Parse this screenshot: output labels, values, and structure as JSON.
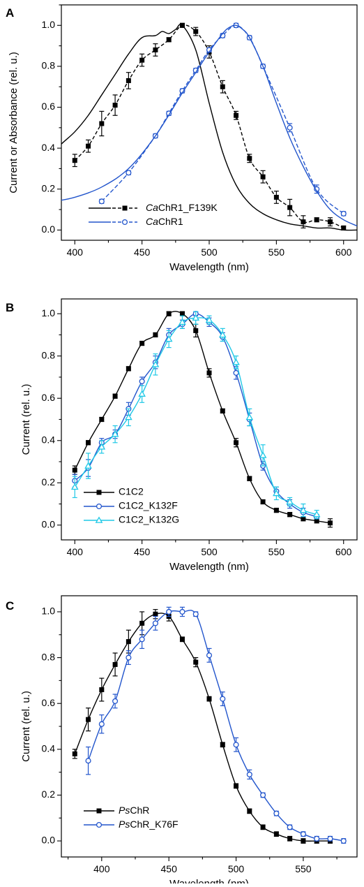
{
  "chart_data": [
    {
      "type": "line",
      "panel_label": "A",
      "xlabel": "Wavelength (nm)",
      "ylabel": "Current or Absorbance (rel. u.)",
      "xlim": [
        390,
        610
      ],
      "ylim": [
        -0.05,
        1.1
      ],
      "xticks": [
        400,
        450,
        500,
        550,
        600
      ],
      "yticks": [
        0.0,
        0.2,
        0.4,
        0.6,
        0.8,
        1.0
      ],
      "legend_position": "bottom-left",
      "series": [
        {
          "name": "CaChR1_F139K",
          "name_italic_prefix": "Ca",
          "name_rest": "ChR1_F139K",
          "color": "#000000",
          "marker": "square-filled",
          "dash": "5,3",
          "x": [
            400,
            410,
            420,
            430,
            440,
            450,
            460,
            470,
            480,
            490,
            500,
            510,
            520,
            530,
            540,
            550,
            560,
            570,
            580,
            590,
            600
          ],
          "y": [
            0.34,
            0.41,
            0.52,
            0.61,
            0.73,
            0.83,
            0.88,
            0.93,
            1.0,
            0.97,
            0.87,
            0.7,
            0.56,
            0.35,
            0.26,
            0.16,
            0.11,
            0.04,
            0.05,
            0.04,
            0.01
          ],
          "err": [
            0.03,
            0.03,
            0.06,
            0.05,
            0.04,
            0.03,
            0.03,
            0.01,
            0.01,
            0.02,
            0.03,
            0.03,
            0.02,
            0.02,
            0.03,
            0.03,
            0.04,
            0.03,
            0.01,
            0.02,
            0.01
          ]
        },
        {
          "name": "CaChR1",
          "name_italic_prefix": "Ca",
          "name_rest": "ChR1",
          "color": "#2255cc",
          "marker": "circle-open",
          "dash": "6,3",
          "x": [
            420,
            440,
            460,
            470,
            480,
            490,
            500,
            510,
            520,
            530,
            540,
            560,
            580,
            600
          ],
          "y": [
            0.14,
            0.28,
            0.46,
            0.57,
            0.68,
            0.78,
            0.88,
            0.95,
            1.0,
            0.94,
            0.8,
            0.5,
            0.2,
            0.08
          ],
          "err": [
            0.01,
            0.01,
            0.01,
            0.01,
            0.01,
            0.01,
            0.01,
            0.01,
            0.01,
            0.01,
            0.01,
            0.02,
            0.02,
            0.01
          ]
        },
        {
          "name": "",
          "style": "solid-line",
          "color": "#000000",
          "x": [
            385,
            390,
            400,
            410,
            420,
            430,
            440,
            450,
            460,
            465,
            470,
            475,
            480,
            490,
            500,
            510,
            520,
            530,
            540,
            550,
            560,
            570,
            580,
            590,
            600,
            610
          ],
          "y": [
            0.38,
            0.42,
            0.48,
            0.56,
            0.66,
            0.76,
            0.86,
            0.94,
            0.95,
            0.97,
            0.96,
            0.98,
            1.0,
            0.88,
            0.62,
            0.38,
            0.22,
            0.13,
            0.08,
            0.05,
            0.03,
            0.02,
            0.01,
            0.01,
            0.0,
            0.0
          ]
        },
        {
          "name": "",
          "style": "solid-line",
          "color": "#2255cc",
          "x": [
            385,
            400,
            420,
            440,
            460,
            480,
            490,
            500,
            510,
            515,
            520,
            525,
            530,
            540,
            550,
            560,
            570,
            580,
            590,
            600,
            610
          ],
          "y": [
            0.14,
            0.16,
            0.21,
            0.3,
            0.46,
            0.67,
            0.77,
            0.87,
            0.96,
            0.99,
            1.0,
            0.98,
            0.94,
            0.8,
            0.62,
            0.45,
            0.31,
            0.19,
            0.1,
            0.05,
            0.02
          ]
        }
      ]
    },
    {
      "type": "line",
      "panel_label": "B",
      "xlabel": "Wavelength (nm)",
      "ylabel": "Current (rel. u.)",
      "xlim": [
        390,
        610
      ],
      "ylim": [
        -0.07,
        1.07
      ],
      "xticks": [
        400,
        450,
        500,
        550,
        600
      ],
      "yticks": [
        0.0,
        0.2,
        0.4,
        0.6,
        0.8,
        1.0
      ],
      "legend_position": "bottom-left",
      "series": [
        {
          "name": "C1C2",
          "color": "#000000",
          "marker": "square-filled",
          "x": [
            400,
            410,
            420,
            430,
            440,
            450,
            460,
            470,
            480,
            490,
            500,
            510,
            520,
            530,
            540,
            550,
            560,
            570,
            580,
            590
          ],
          "y": [
            0.26,
            0.39,
            0.5,
            0.61,
            0.74,
            0.86,
            0.9,
            1.0,
            1.0,
            0.92,
            0.72,
            0.54,
            0.39,
            0.22,
            0.11,
            0.07,
            0.05,
            0.03,
            0.02,
            0.01
          ],
          "err": [
            0.02,
            0.01,
            0.01,
            0.01,
            0.01,
            0.01,
            0.01,
            0.01,
            0.01,
            0.03,
            0.02,
            0.01,
            0.02,
            0.01,
            0.01,
            0.01,
            0.01,
            0.01,
            0.01,
            0.02
          ]
        },
        {
          "name": "C1C2_K132F",
          "color": "#2255cc",
          "marker": "circle-open",
          "x": [
            400,
            410,
            420,
            430,
            440,
            450,
            460,
            470,
            480,
            490,
            500,
            510,
            520,
            530,
            540,
            550,
            560,
            570,
            580
          ],
          "y": [
            0.21,
            0.27,
            0.39,
            0.43,
            0.55,
            0.68,
            0.77,
            0.9,
            0.95,
            1.0,
            0.96,
            0.89,
            0.72,
            0.5,
            0.28,
            0.16,
            0.1,
            0.06,
            0.04
          ],
          "err": [
            0.03,
            0.04,
            0.02,
            0.02,
            0.03,
            0.02,
            0.03,
            0.03,
            0.02,
            0.01,
            0.02,
            0.02,
            0.03,
            0.03,
            0.02,
            0.02,
            0.02,
            0.02,
            0.01
          ]
        },
        {
          "name": "C1C2_K132G",
          "color": "#1ec8e6",
          "marker": "triangle-open",
          "x": [
            400,
            410,
            420,
            430,
            440,
            450,
            460,
            470,
            480,
            490,
            500,
            510,
            520,
            530,
            540,
            550,
            560,
            570,
            580
          ],
          "y": [
            0.18,
            0.28,
            0.37,
            0.43,
            0.51,
            0.62,
            0.76,
            0.88,
            0.96,
            0.98,
            0.97,
            0.9,
            0.77,
            0.51,
            0.33,
            0.15,
            0.11,
            0.07,
            0.05
          ],
          "err": [
            0.05,
            0.06,
            0.03,
            0.04,
            0.04,
            0.04,
            0.05,
            0.04,
            0.03,
            0.03,
            0.02,
            0.03,
            0.03,
            0.04,
            0.05,
            0.03,
            0.02,
            0.03,
            0.02
          ]
        }
      ]
    },
    {
      "type": "line",
      "panel_label": "C",
      "xlabel": "Wavelength (nm)",
      "ylabel": "Current (rel. u.)",
      "xlim": [
        370,
        590
      ],
      "ylim": [
        -0.07,
        1.07
      ],
      "xticks": [
        400,
        450,
        500,
        550
      ],
      "yticks": [
        0.0,
        0.2,
        0.4,
        0.6,
        0.8,
        1.0
      ],
      "legend_position": "bottom-left",
      "series": [
        {
          "name": "PsChR",
          "name_italic_prefix": "Ps",
          "name_rest": "ChR",
          "color": "#000000",
          "marker": "square-filled",
          "x": [
            380,
            390,
            400,
            410,
            420,
            430,
            440,
            450,
            460,
            470,
            480,
            490,
            500,
            510,
            520,
            530,
            540,
            550,
            560,
            570
          ],
          "y": [
            0.38,
            0.53,
            0.66,
            0.77,
            0.87,
            0.95,
            0.99,
            0.98,
            0.88,
            0.78,
            0.62,
            0.42,
            0.24,
            0.13,
            0.06,
            0.03,
            0.01,
            0.0,
            0.0,
            0.0
          ],
          "err": [
            0.02,
            0.05,
            0.05,
            0.05,
            0.05,
            0.05,
            0.02,
            0.02,
            0.01,
            0.02,
            0.01,
            0.01,
            0.01,
            0.01,
            0.01,
            0.01,
            0.01,
            0.01,
            0.01,
            0.01
          ]
        },
        {
          "name": "PsChR_K76F",
          "name_italic_prefix": "Ps",
          "name_rest": "ChR_K76F",
          "color": "#2255cc",
          "marker": "circle-open",
          "x": [
            390,
            400,
            410,
            420,
            430,
            440,
            450,
            460,
            470,
            480,
            490,
            500,
            510,
            520,
            530,
            540,
            550,
            560,
            570,
            580
          ],
          "y": [
            0.35,
            0.51,
            0.61,
            0.8,
            0.88,
            0.95,
            1.0,
            1.0,
            0.99,
            0.81,
            0.62,
            0.42,
            0.29,
            0.2,
            0.12,
            0.06,
            0.03,
            0.01,
            0.01,
            0.0
          ],
          "err": [
            0.06,
            0.04,
            0.03,
            0.03,
            0.04,
            0.03,
            0.02,
            0.02,
            0.01,
            0.03,
            0.03,
            0.03,
            0.02,
            0.01,
            0.01,
            0.01,
            0.01,
            0.01,
            0.01,
            0.01
          ]
        }
      ]
    }
  ]
}
